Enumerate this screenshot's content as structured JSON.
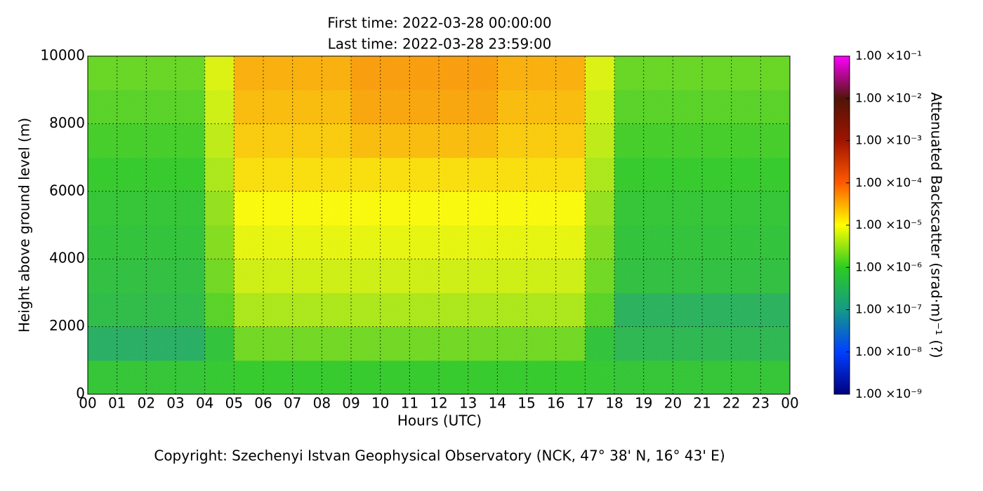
{
  "chart_data": {
    "type": "heatmap",
    "title": [
      "First time: 2022-03-28 00:00:00",
      "Last time: 2022-03-28 23:59:00"
    ],
    "xlabel": "Hours (UTC)",
    "ylabel": "Height above ground level (m)",
    "footer": "Copyright: Szechenyi Istvan Geophysical Observatory (NCK, 47° 38' N, 16° 43' E)",
    "xlim": [
      0,
      24
    ],
    "xticks": [
      {
        "value": 0,
        "label": "00"
      },
      {
        "value": 1,
        "label": "01"
      },
      {
        "value": 2,
        "label": "02"
      },
      {
        "value": 3,
        "label": "03"
      },
      {
        "value": 4,
        "label": "04"
      },
      {
        "value": 5,
        "label": "05"
      },
      {
        "value": 6,
        "label": "06"
      },
      {
        "value": 7,
        "label": "07"
      },
      {
        "value": 8,
        "label": "08"
      },
      {
        "value": 9,
        "label": "09"
      },
      10,
      11,
      12,
      13,
      14,
      15,
      16,
      17,
      18,
      19,
      20,
      21,
      22,
      23,
      {
        "value": 24,
        "label": "00"
      }
    ],
    "ylim": [
      0,
      10000
    ],
    "yticks": [
      0,
      2000,
      4000,
      6000,
      8000,
      10000
    ],
    "grid": true,
    "x": [
      0,
      1,
      2,
      3,
      4,
      5,
      6,
      7,
      8,
      9,
      10,
      11,
      12,
      13,
      14,
      15,
      16,
      17,
      18,
      19,
      20,
      21,
      22,
      23,
      24
    ],
    "y": [
      0,
      1000,
      2000,
      3000,
      4000,
      5000,
      6000,
      7000,
      8000,
      9000,
      10000
    ],
    "z": [
      [
        8e-07,
        8e-07,
        8e-07,
        8e-07,
        9e-07,
        1e-06,
        1e-06,
        1e-06,
        1e-06,
        1e-06,
        1e-06,
        1e-06,
        1e-06,
        1e-06,
        1e-06,
        1e-06,
        1e-06,
        9e-07,
        8e-07,
        8e-07,
        8e-07,
        8e-07,
        8e-07,
        8e-07
      ],
      [
        2.5e-07,
        2.5e-07,
        2.5e-07,
        2.5e-07,
        7e-07,
        2e-06,
        2e-06,
        2e-06,
        2e-06,
        2e-06,
        2e-06,
        2e-06,
        2e-06,
        2e-06,
        2e-06,
        2e-06,
        2e-06,
        7e-07,
        4e-07,
        4e-07,
        4e-07,
        4e-07,
        4e-07,
        4e-07
      ],
      [
        5e-07,
        5e-07,
        5e-07,
        5e-07,
        1.5e-06,
        4e-06,
        4e-06,
        4e-06,
        4e-06,
        4e-06,
        4e-06,
        4e-06,
        4e-06,
        4e-06,
        4e-06,
        4e-06,
        4e-06,
        1.5e-06,
        3e-07,
        3e-07,
        3e-07,
        3e-07,
        3e-07,
        3e-07
      ],
      [
        6e-07,
        6e-07,
        6e-07,
        6e-07,
        2e-06,
        6e-06,
        6e-06,
        6e-06,
        6e-06,
        6e-06,
        6e-06,
        6e-06,
        6e-06,
        6e-06,
        6e-06,
        6e-06,
        6e-06,
        2e-06,
        6e-07,
        6e-07,
        6e-07,
        6e-07,
        6e-07,
        6e-07
      ],
      [
        7e-07,
        7e-07,
        7e-07,
        7e-07,
        2.5e-06,
        8e-06,
        8e-06,
        8e-06,
        8e-06,
        8e-06,
        8e-06,
        8e-06,
        8e-06,
        8e-06,
        8e-06,
        8e-06,
        8e-06,
        2.5e-06,
        7e-07,
        7e-07,
        7e-07,
        7e-07,
        7e-07,
        7e-07
      ],
      [
        8e-07,
        8e-07,
        8e-07,
        8e-07,
        3e-06,
        1e-05,
        1e-05,
        1e-05,
        1e-05,
        1e-05,
        1e-05,
        1e-05,
        1e-05,
        1e-05,
        1e-05,
        1e-05,
        1e-05,
        3e-06,
        8e-07,
        8e-07,
        8e-07,
        8e-07,
        8e-07,
        8e-07
      ],
      [
        1e-06,
        1e-06,
        1e-06,
        1e-06,
        4e-06,
        1.5e-05,
        1.5e-05,
        1.5e-05,
        1.5e-05,
        1.5e-05,
        1.5e-05,
        1.5e-05,
        1.5e-05,
        1.5e-05,
        1.5e-05,
        1.5e-05,
        1.5e-05,
        4e-06,
        1e-06,
        1e-06,
        1e-06,
        1e-06,
        1e-06,
        1e-06
      ],
      [
        1.2e-06,
        1.2e-06,
        1.2e-06,
        1.2e-06,
        5e-06,
        2e-05,
        2e-05,
        2e-05,
        2e-05,
        2.5e-05,
        2.5e-05,
        2.5e-05,
        2.5e-05,
        2.5e-05,
        2e-05,
        2e-05,
        2e-05,
        5e-06,
        1.2e-06,
        1.2e-06,
        1.2e-06,
        1.2e-06,
        1.2e-06,
        1.2e-06
      ],
      [
        1.5e-06,
        1.5e-06,
        1.5e-06,
        1.5e-06,
        6e-06,
        2.5e-05,
        2.5e-05,
        2.5e-05,
        2.5e-05,
        3.5e-05,
        3.5e-05,
        3.5e-05,
        3.5e-05,
        3.5e-05,
        2.5e-05,
        2.5e-05,
        2.5e-05,
        6e-06,
        1.5e-06,
        1.5e-06,
        1.5e-06,
        1.5e-06,
        1.5e-06,
        1.5e-06
      ],
      [
        1.8e-06,
        1.8e-06,
        1.8e-06,
        1.8e-06,
        7e-06,
        3e-05,
        3e-05,
        3e-05,
        3e-05,
        4e-05,
        4e-05,
        4e-05,
        4e-05,
        4e-05,
        3e-05,
        3e-05,
        3e-05,
        7e-06,
        1.8e-06,
        1.8e-06,
        1.8e-06,
        1.8e-06,
        1.8e-06,
        1.8e-06
      ]
    ],
    "colorbar": {
      "label": "Attenuated Backscatter (srad·m)⁻¹ (?)",
      "log": true,
      "lim": [
        1e-09,
        0.1
      ],
      "ticks": [
        {
          "value": 1e-09,
          "label": "1.00 ×10⁻⁹"
        },
        {
          "value": 1e-08,
          "label": "1.00 ×10⁻⁸"
        },
        {
          "value": 1e-07,
          "label": "1.00 ×10⁻⁷"
        },
        {
          "value": 1e-06,
          "label": "1.00 ×10⁻⁶"
        },
        {
          "value": 1e-05,
          "label": "1.00 ×10⁻⁵"
        },
        {
          "value": 0.0001,
          "label": "1.00 ×10⁻⁴"
        },
        {
          "value": 0.001,
          "label": "1.00 ×10⁻³"
        },
        {
          "value": 0.01,
          "label": "1.00 ×10⁻²"
        },
        {
          "value": 0.1,
          "label": "1.00 ×10⁻¹"
        }
      ],
      "colors": [
        "#00007f",
        "#0040ff",
        "#159a86",
        "#2ccc22",
        "#ffff00",
        "#ff5a00",
        "#a01400",
        "#501408",
        "#ff00ff"
      ]
    }
  }
}
